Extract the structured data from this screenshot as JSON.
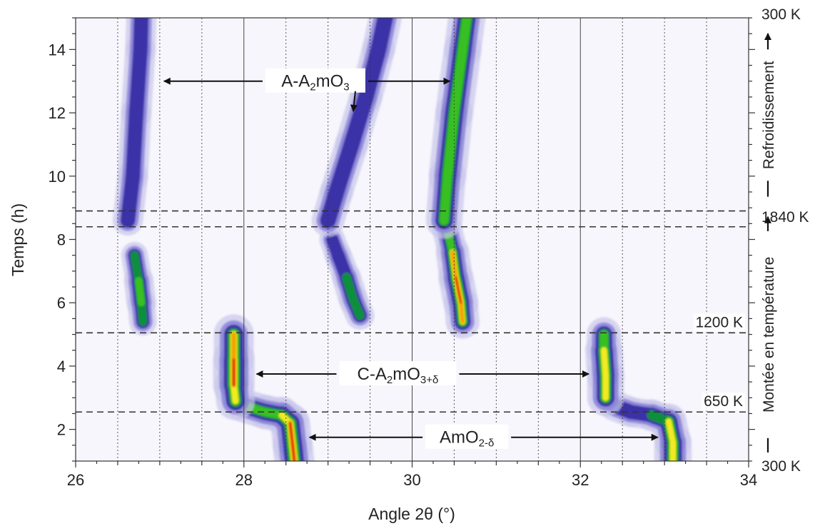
{
  "colors": {
    "background": "#ffffff",
    "intensity_scale": [
      "#f6f5fb",
      "#c9c7ec",
      "#8c86d8",
      "#3b33a8",
      "#0e8f3a",
      "#39c020",
      "#f2ea20",
      "#f5a000",
      "#e01000"
    ],
    "axis": "#333333",
    "dashed_lines": "#333333"
  },
  "chart_data": {
    "type": "heatmap",
    "xlabel": "Angle 2θ (°)",
    "ylabel": "Temps (h)",
    "xlim": [
      26,
      34
    ],
    "ylim": [
      1,
      15
    ],
    "x_ticks": [
      26,
      28,
      30,
      32,
      34
    ],
    "y_ticks": [
      2,
      4,
      6,
      8,
      10,
      12,
      14
    ],
    "x_minor_step": 0.5,
    "y_minor_step": 0.5,
    "grid": "vertical dotted every 0.5°, solid every 2°",
    "time_markers": [
      {
        "time": 2.55,
        "label": "650 K"
      },
      {
        "time": 5.05,
        "label": "1200 K"
      },
      {
        "time": 8.4,
        "label": "1840 K"
      },
      {
        "time": 8.9,
        "label": ""
      }
    ],
    "right_axis_labels": [
      {
        "time": 15,
        "label": "300 K"
      },
      {
        "time": 8.55,
        "label": "1840 K"
      },
      {
        "time": 1.0,
        "label": "300 K"
      }
    ],
    "side_annotations": [
      {
        "label": "Refroidissement",
        "from_time": 8.9,
        "to_time": 15
      },
      {
        "label": "Montée en température",
        "from_time": 1,
        "to_time": 8.4
      }
    ],
    "phase_annotations": [
      {
        "label": "A-A",
        "sub": "2",
        "label2": "mO",
        "sub2": "3",
        "time": 13.0,
        "x": 28.85
      },
      {
        "label": "C-A",
        "sub": "2",
        "label2": "mO",
        "sub2": "3+δ",
        "time": 3.75,
        "x": 29.83
      },
      {
        "label": "AmO",
        "sub": "2-δ",
        "label2": "",
        "sub2": "",
        "time": 1.75,
        "x": 30.65
      }
    ],
    "peaks": [
      {
        "name": "AmO2-δ",
        "width": 0.16,
        "points": [
          [
            28.6,
            1.0,
            3.4
          ],
          [
            28.58,
            1.5,
            3.6
          ],
          [
            28.55,
            2.2,
            3.2
          ],
          [
            28.45,
            2.45,
            2.4
          ],
          [
            28.25,
            2.55,
            2.0
          ],
          [
            28.0,
            2.75,
            2.2
          ]
        ]
      },
      {
        "name": "C-A2mO3+δ low",
        "width": 0.17,
        "points": [
          [
            27.9,
            2.9,
            2.4
          ],
          [
            27.88,
            3.4,
            3.0
          ],
          [
            27.88,
            4.2,
            3.6
          ],
          [
            27.88,
            5.0,
            2.4
          ]
        ]
      },
      {
        "name": "AmO2-δ high",
        "width": 0.15,
        "points": [
          [
            33.1,
            1.0,
            2.6
          ],
          [
            33.1,
            1.6,
            2.8
          ],
          [
            33.05,
            2.25,
            2.0
          ],
          [
            32.85,
            2.45,
            1.3
          ],
          [
            32.6,
            2.55,
            1.2
          ],
          [
            32.4,
            2.75,
            1.5
          ]
        ]
      },
      {
        "name": "C-A2mO3+δ high",
        "width": 0.15,
        "points": [
          [
            32.3,
            3.0,
            2.2
          ],
          [
            32.3,
            3.7,
            2.6
          ],
          [
            32.28,
            4.5,
            2.4
          ],
          [
            32.28,
            5.0,
            1.6
          ]
        ]
      },
      {
        "name": "peak 26.8 heating",
        "width": 0.12,
        "points": [
          [
            26.8,
            5.4,
            1.2
          ],
          [
            26.78,
            6.0,
            2.2
          ],
          [
            26.75,
            6.7,
            1.9
          ],
          [
            26.7,
            7.5,
            1.2
          ]
        ]
      },
      {
        "name": "A-A2mO3 26.8 cooling",
        "width": 0.12,
        "points": [
          [
            26.62,
            8.6,
            1.0
          ],
          [
            26.68,
            10.0,
            1.0
          ],
          [
            26.72,
            12.0,
            1.0
          ],
          [
            26.77,
            14.0,
            1.0
          ],
          [
            26.78,
            15.0,
            1.0
          ]
        ]
      },
      {
        "name": "peak 29.3 heating",
        "width": 0.12,
        "points": [
          [
            29.38,
            5.6,
            1.4
          ],
          [
            29.3,
            6.1,
            1.9
          ],
          [
            29.22,
            6.8,
            1.5
          ],
          [
            29.12,
            7.5,
            1.3
          ],
          [
            29.05,
            8.0,
            1.1
          ]
        ]
      },
      {
        "name": "A-A2mO3 29.3 cooling",
        "width": 0.13,
        "points": [
          [
            29.0,
            8.6,
            1.0
          ],
          [
            29.1,
            9.5,
            1.0
          ],
          [
            29.28,
            11.0,
            1.0
          ],
          [
            29.45,
            12.5,
            1.0
          ],
          [
            29.6,
            14.0,
            1.0
          ],
          [
            29.68,
            15.0,
            1.0
          ]
        ]
      },
      {
        "name": "peak 30.6 heating",
        "width": 0.14,
        "points": [
          [
            30.6,
            5.4,
            2.6
          ],
          [
            30.58,
            6.0,
            3.4
          ],
          [
            30.52,
            6.8,
            3.2
          ],
          [
            30.48,
            7.6,
            2.6
          ],
          [
            30.42,
            8.3,
            1.6
          ]
        ]
      },
      {
        "name": "A-A2mO3 30.6 cooling",
        "width": 0.15,
        "points": [
          [
            30.38,
            8.6,
            1.8
          ],
          [
            30.42,
            10.0,
            2.0
          ],
          [
            30.5,
            12.0,
            2.1
          ],
          [
            30.6,
            14.0,
            2.0
          ],
          [
            30.65,
            15.0,
            2.0
          ]
        ]
      }
    ]
  }
}
